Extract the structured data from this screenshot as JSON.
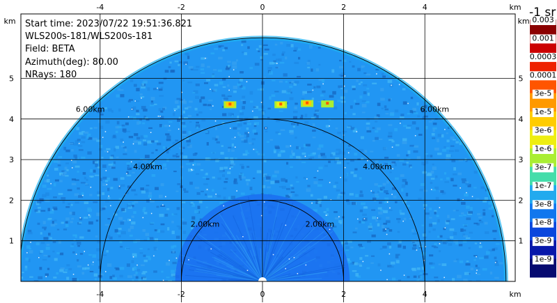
{
  "info": {
    "start_time": "Start time: 2023/07/22 19:51:36.821",
    "instrument": "WLS200s-181/WLS200s-181",
    "field": "Field: BETA",
    "azimuth": "Azimuth(deg): 80.00",
    "nrays": "NRays: 180"
  },
  "colorbar": {
    "unit_label": "-1 sr",
    "labels": [
      "0.003",
      "0.001",
      "0.0003",
      "0.0001",
      "3e-5",
      "1e-5",
      "3e-6",
      "1e-6",
      "3e-7",
      "1e-7",
      "3e-8",
      "1e-8",
      "3e-9",
      "1e-9"
    ],
    "colors": [
      "#8b0000",
      "#cc0000",
      "#ee2200",
      "#ff5500",
      "#ff9900",
      "#ffcc00",
      "#eeee11",
      "#aaee33",
      "#44ddaa",
      "#22aaee",
      "#1177ee",
      "#0a47dd",
      "#0818aa",
      "#060a70"
    ]
  },
  "chart_data": {
    "type": "heatmap",
    "projection": "RHI",
    "x_unit": "km",
    "y_unit": "km",
    "xlim": [
      -6.2,
      6.2
    ],
    "ylim": [
      0,
      6.0
    ],
    "x_ticks": [
      -4,
      -2,
      0,
      2,
      4
    ],
    "y_ticks": [
      1,
      2,
      3,
      4,
      5
    ],
    "range_rings_km": [
      2,
      4,
      6
    ],
    "range_ring_labels": [
      "2.00km",
      "4.00km",
      "6.00km"
    ],
    "max_range_km": 6.0,
    "background_color": "#2196f3",
    "near_field_color": "#1a6ef0",
    "hotspots": [
      {
        "x": -0.8,
        "y": 4.35,
        "value": "1e-5"
      },
      {
        "x": 0.45,
        "y": 4.35,
        "value": "3e-6"
      },
      {
        "x": 1.1,
        "y": 4.38,
        "value": "1e-5"
      },
      {
        "x": 1.6,
        "y": 4.37,
        "value": "1e-6"
      }
    ],
    "grid": true
  }
}
